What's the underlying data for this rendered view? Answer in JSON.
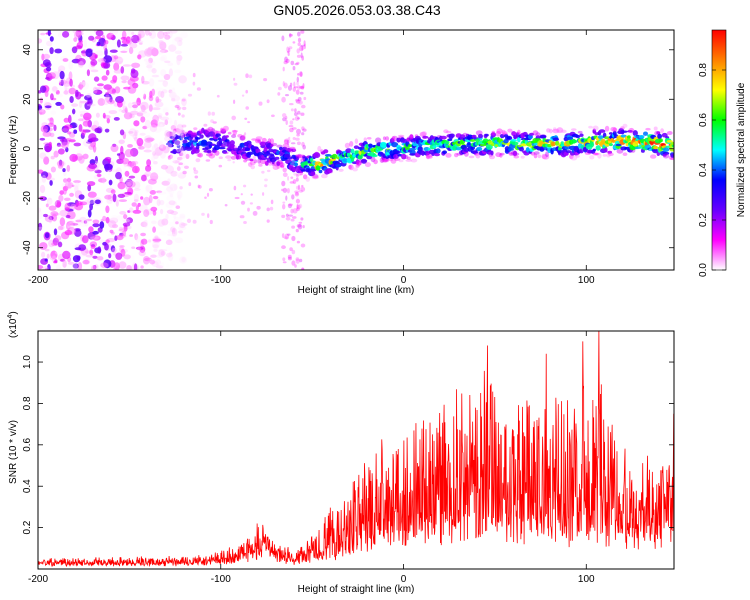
{
  "chart_data": [
    {
      "type": "heatmap",
      "title": "GN05.2026.053.03.38.C43",
      "xlabel": "Height of straight line (km)",
      "ylabel": "Frequency (Hz)",
      "xlim": [
        -200,
        148
      ],
      "ylim": [
        -49,
        48
      ],
      "xticks": [
        -200,
        -100,
        0,
        100
      ],
      "yticks": [
        -40,
        -20,
        0,
        20,
        40
      ],
      "colorbar": {
        "label": "Normalized spectral amplitude",
        "range": [
          0,
          0.96
        ],
        "ticks": [
          0.0,
          0.2,
          0.4,
          0.6,
          0.8
        ],
        "tick_labels": [
          "0.0",
          "0.2",
          "0.4",
          "0.6",
          "0.8"
        ],
        "colormap": [
          "#ffffff",
          "#ff00ff",
          "#6600ff",
          "#0000ff",
          "#00ffff",
          "#00ff00",
          "#ffff00",
          "#ff8000",
          "#ff0000"
        ]
      },
      "ridge": {
        "description": "Dominant frequency track vs. height",
        "x": [
          -170,
          -150,
          -125,
          -110,
          -95,
          -80,
          -65,
          -55,
          -45,
          -35,
          -20,
          -5,
          10,
          30,
          50,
          70,
          90,
          110,
          130,
          148
        ],
        "freq": [
          5,
          3,
          2,
          3,
          2,
          -1,
          -3,
          -7,
          -6,
          -4,
          -1,
          0,
          1,
          2,
          2,
          2,
          2,
          3,
          3,
          1
        ],
        "peak_amplitude": [
          0.3,
          0.35,
          0.4,
          0.45,
          0.4,
          0.35,
          0.4,
          0.5,
          0.9,
          0.6,
          0.7,
          0.6,
          0.6,
          0.65,
          0.7,
          0.75,
          0.75,
          0.8,
          0.9,
          0.9
        ]
      },
      "noise_region_x": [
        -200,
        -120
      ]
    },
    {
      "type": "line",
      "xlabel": "Height of straight line (km)",
      "ylabel": "SNR (10 * v/v)",
      "yscale_label": "(x10",
      "yscale_exp": "4",
      "yscale_suffix": ")",
      "xlim": [
        -200,
        148
      ],
      "ylim": [
        0,
        1.15
      ],
      "xticks": [
        -200,
        -100,
        0,
        100
      ],
      "yticks": [
        0.2,
        0.4,
        0.6,
        0.8,
        1.0
      ],
      "color": "#ff0000",
      "envelope": {
        "x": [
          -200,
          -150,
          -120,
          -100,
          -90,
          -82,
          -78,
          -70,
          -60,
          -50,
          -40,
          -30,
          -20,
          -10,
          0,
          10,
          20,
          30,
          40,
          45,
          50,
          60,
          70,
          80,
          90,
          100,
          105,
          110,
          120,
          130,
          140,
          148
        ],
        "base": [
          0.02,
          0.02,
          0.02,
          0.03,
          0.04,
          0.06,
          0.08,
          0.05,
          0.03,
          0.04,
          0.06,
          0.09,
          0.12,
          0.14,
          0.15,
          0.16,
          0.17,
          0.18,
          0.18,
          0.18,
          0.18,
          0.18,
          0.17,
          0.17,
          0.16,
          0.16,
          0.16,
          0.15,
          0.15,
          0.14,
          0.14,
          0.14
        ],
        "amp": [
          0.03,
          0.04,
          0.04,
          0.06,
          0.08,
          0.12,
          0.14,
          0.09,
          0.06,
          0.12,
          0.25,
          0.35,
          0.45,
          0.5,
          0.55,
          0.6,
          0.7,
          0.75,
          0.8,
          0.85,
          0.8,
          0.78,
          0.75,
          0.7,
          0.7,
          0.75,
          0.85,
          0.7,
          0.55,
          0.45,
          0.4,
          0.5
        ]
      },
      "notable_peaks": [
        {
          "x": 46,
          "y": 1.08
        },
        {
          "x": 107,
          "y": 1.15
        },
        {
          "x": 78,
          "y": 1.04
        },
        {
          "x": 98,
          "y": 1.1
        },
        {
          "x": -80,
          "y": 0.22
        },
        {
          "x": 148,
          "y": 0.75
        }
      ]
    }
  ]
}
